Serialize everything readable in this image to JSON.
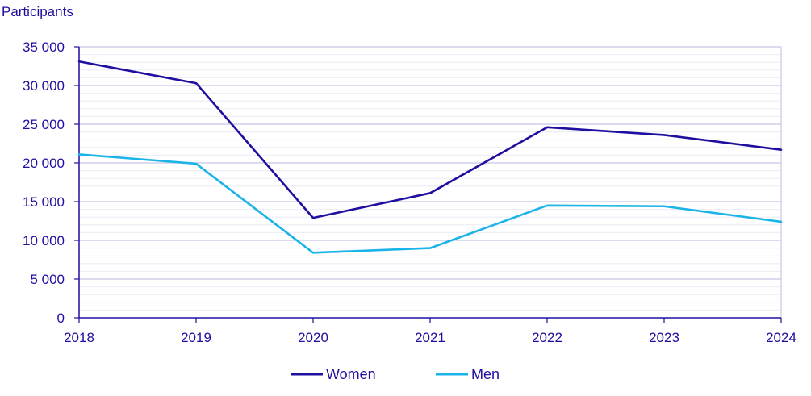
{
  "chart_data": {
    "type": "line",
    "title": "",
    "ylabel": "Participants",
    "xlabel": "",
    "x": [
      "2018",
      "2019",
      "2020",
      "2021",
      "2022",
      "2023",
      "2024"
    ],
    "ylim": [
      0,
      35000
    ],
    "yticks": [
      0,
      5000,
      10000,
      15000,
      20000,
      25000,
      30000,
      35000
    ],
    "ytick_labels": [
      "0",
      "5 000",
      "10 000",
      "15 000",
      "20 000",
      "25 000",
      "30 000",
      "35 000"
    ],
    "grid": true,
    "legend_position": "bottom-center",
    "series": [
      {
        "name": "Women",
        "color": "#1e0fa0",
        "values": [
          33100,
          30300,
          12900,
          16100,
          24600,
          23600,
          21700
        ]
      },
      {
        "name": "Men",
        "color": "#1ab4e8",
        "values": [
          21100,
          19900,
          8400,
          9000,
          14500,
          14400,
          12400
        ]
      }
    ]
  },
  "colors": {
    "text": "#1e0fa0",
    "grid_major": "#c8c8e6",
    "grid_minor": "#ebebf5",
    "axis": "#1e0fa0"
  }
}
